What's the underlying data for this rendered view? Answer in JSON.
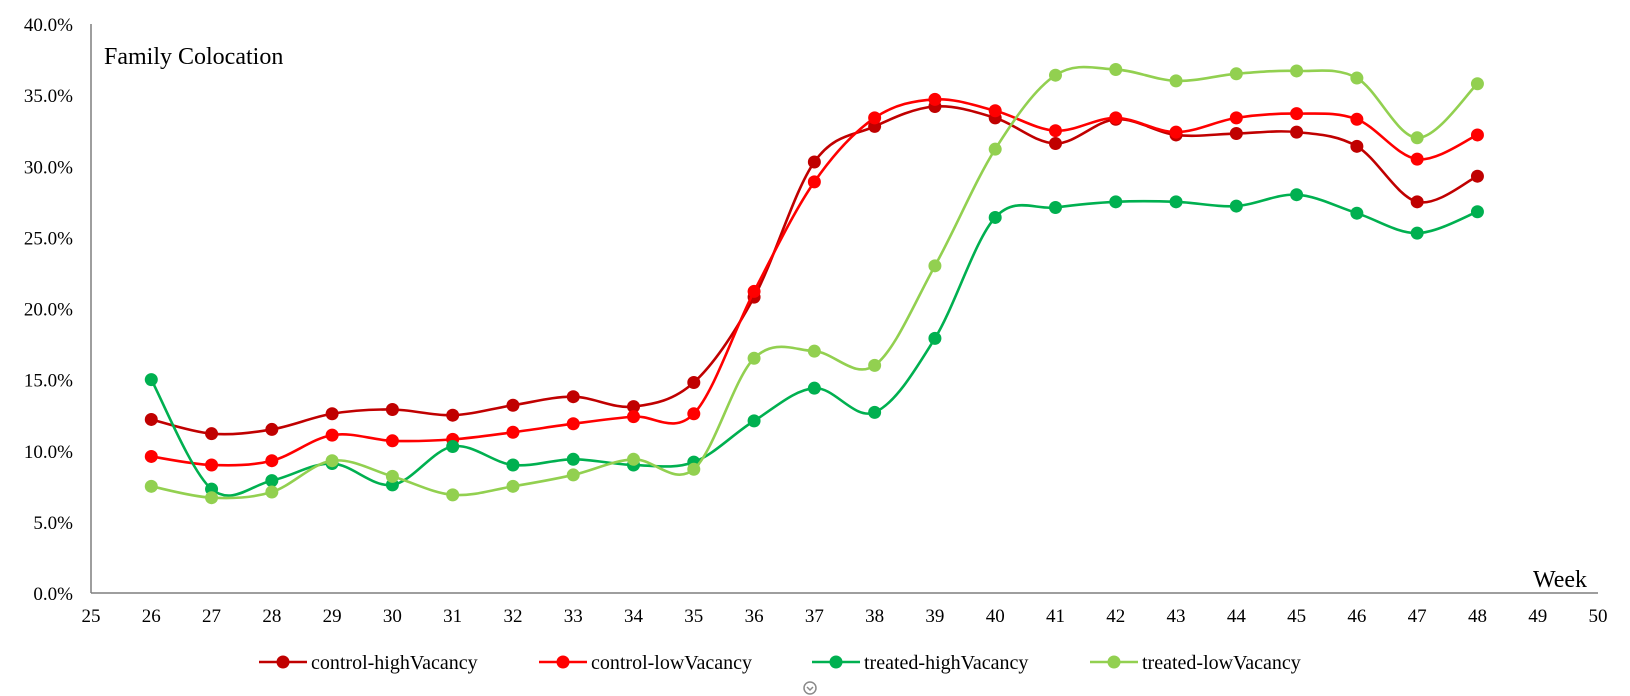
{
  "chart_data": {
    "type": "line",
    "title": "Family Colocation",
    "xlabel": "Week",
    "ylabel": "",
    "xlim": [
      25,
      50
    ],
    "ylim": [
      0,
      0.4
    ],
    "x_ticks": [
      25,
      26,
      27,
      28,
      29,
      30,
      31,
      32,
      33,
      34,
      35,
      36,
      37,
      38,
      39,
      40,
      41,
      42,
      43,
      44,
      45,
      46,
      47,
      48,
      49,
      50
    ],
    "y_ticks": [
      "0.0%",
      "5.0%",
      "10.0%",
      "15.0%",
      "20.0%",
      "25.0%",
      "30.0%",
      "35.0%",
      "40.0%"
    ],
    "x": [
      26,
      27,
      28,
      29,
      30,
      31,
      32,
      33,
      34,
      35,
      36,
      37,
      38,
      39,
      40,
      41,
      42,
      43,
      44,
      45,
      46,
      47,
      48
    ],
    "grid": false,
    "legend_position": "bottom",
    "series": [
      {
        "name": "control-highVacancy",
        "color": "#c00000",
        "values": [
          0.122,
          0.112,
          0.115,
          0.126,
          0.129,
          0.125,
          0.132,
          0.138,
          0.131,
          0.148,
          0.208,
          0.303,
          0.328,
          0.342,
          0.334,
          0.316,
          0.333,
          0.322,
          0.323,
          0.324,
          0.314,
          0.275,
          0.293
        ]
      },
      {
        "name": "control-lowVacancy",
        "color": "#ff0000",
        "values": [
          0.096,
          0.09,
          0.093,
          0.111,
          0.107,
          0.108,
          0.113,
          0.119,
          0.124,
          0.126,
          0.212,
          0.289,
          0.334,
          0.347,
          0.339,
          0.325,
          0.334,
          0.324,
          0.334,
          0.337,
          0.333,
          0.305,
          0.322
        ]
      },
      {
        "name": "treated-highVacancy",
        "color": "#00b050",
        "values": [
          0.15,
          0.073,
          0.079,
          0.091,
          0.076,
          0.103,
          0.09,
          0.094,
          0.09,
          0.092,
          0.121,
          0.144,
          0.127,
          0.179,
          0.264,
          0.271,
          0.275,
          0.275,
          0.272,
          0.28,
          0.267,
          0.253,
          0.268
        ]
      },
      {
        "name": "treated-lowVacancy",
        "color": "#92d050",
        "values": [
          0.075,
          0.067,
          0.071,
          0.093,
          0.082,
          0.069,
          0.075,
          0.083,
          0.094,
          0.087,
          0.165,
          0.17,
          0.16,
          0.23,
          0.312,
          0.364,
          0.368,
          0.36,
          0.365,
          0.367,
          0.362,
          0.32,
          0.358
        ]
      }
    ]
  }
}
